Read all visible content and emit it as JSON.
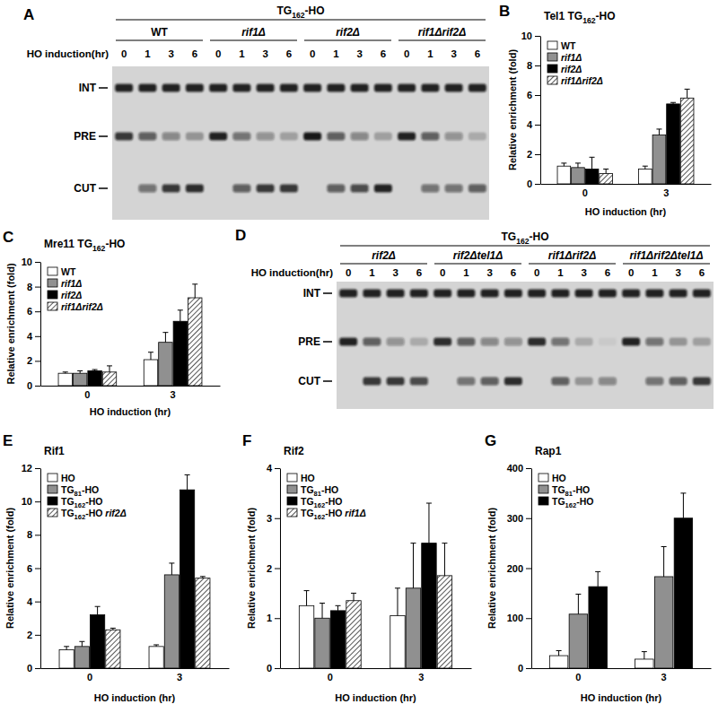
{
  "chart_data": [
    {
      "type": "blot",
      "label": "A",
      "title": "TG162-HO",
      "row_label": "HO induction(hr)",
      "groups": [
        {
          "name": "WT",
          "lanes": [
            0,
            1,
            3,
            6
          ]
        },
        {
          "name": "rif1Δ",
          "lanes": [
            0,
            1,
            3,
            6
          ]
        },
        {
          "name": "rif2Δ",
          "lanes": [
            0,
            1,
            3,
            6
          ]
        },
        {
          "name": "rif1Δrif2Δ",
          "lanes": [
            0,
            1,
            3,
            6
          ]
        }
      ],
      "bands": [
        {
          "name": "INT",
          "values": [
            0.9,
            0.9,
            0.9,
            0.9,
            0.9,
            0.9,
            0.9,
            0.9,
            0.9,
            0.9,
            0.9,
            0.9,
            0.9,
            0.9,
            0.9,
            0.9
          ]
        },
        {
          "name": "PRE",
          "values": [
            0.8,
            0.6,
            0.4,
            0.3,
            0.9,
            0.5,
            0.35,
            0.25,
            0.95,
            0.6,
            0.4,
            0.25,
            0.9,
            0.6,
            0.35,
            0.2
          ]
        },
        {
          "name": "CUT",
          "values": [
            0,
            0.5,
            0.8,
            0.85,
            0,
            0.6,
            0.8,
            0.8,
            0,
            0.6,
            0.7,
            0.9,
            0,
            0.5,
            0.5,
            0.6
          ]
        }
      ]
    },
    {
      "type": "bar",
      "label": "B",
      "title": "Tel1 TG162-HO",
      "x_label": "HO induction (hr)",
      "y_label": "Relative enrichment (fold)",
      "categories": [
        "0",
        "3"
      ],
      "series": [
        {
          "name": "WT",
          "color": "#ffffff",
          "values": [
            1.2,
            1.0
          ],
          "errors": [
            0.2,
            0.2
          ]
        },
        {
          "name": "rif1Δ",
          "color": "#909090",
          "values": [
            1.1,
            3.3
          ],
          "errors": [
            0.3,
            0.4
          ]
        },
        {
          "name": "rif2Δ",
          "color": "#000000",
          "values": [
            1.0,
            5.4
          ],
          "errors": [
            0.8,
            0.1
          ]
        },
        {
          "name": "rif1Δrif2Δ",
          "color": "#555555",
          "line_style": "hatched",
          "values": [
            0.7,
            5.8
          ],
          "errors": [
            0.3,
            0.6
          ]
        }
      ],
      "ylim": [
        0,
        10
      ],
      "yticks": [
        0,
        2,
        4,
        6,
        8,
        10
      ],
      "legend": "upper left"
    },
    {
      "type": "bar",
      "label": "C",
      "title": "Mre11 TG162-HO",
      "x_label": "HO induction (hr)",
      "y_label": "Relative enrichment (fold)",
      "categories": [
        "0",
        "3"
      ],
      "series": [
        {
          "name": "WT",
          "color": "#ffffff",
          "values": [
            1.0,
            2.1
          ],
          "errors": [
            0.1,
            0.6
          ]
        },
        {
          "name": "rif1Δ",
          "color": "#909090",
          "values": [
            1.0,
            3.5
          ],
          "errors": [
            0.2,
            0.8
          ]
        },
        {
          "name": "rif2Δ",
          "color": "#000000",
          "values": [
            1.2,
            5.2
          ],
          "errors": [
            0.1,
            0.9
          ]
        },
        {
          "name": "rif1Δrif2Δ",
          "color": "#555555",
          "line_style": "hatched",
          "values": [
            1.1,
            7.1
          ],
          "errors": [
            0.5,
            1.1
          ]
        }
      ],
      "ylim": [
        0,
        10
      ],
      "yticks": [
        0,
        2,
        4,
        6,
        8,
        10
      ],
      "legend": "upper left"
    },
    {
      "type": "blot",
      "label": "D",
      "title": "TG162-HO",
      "row_label": "HO induction(hr)",
      "groups": [
        {
          "name": "rif2Δ",
          "lanes": [
            0,
            1,
            3,
            6
          ]
        },
        {
          "name": "rif2Δtel1Δ",
          "lanes": [
            0,
            1,
            3,
            6
          ]
        },
        {
          "name": "rif1Δrif2Δ",
          "lanes": [
            0,
            1,
            3,
            6
          ]
        },
        {
          "name": "rif1Δrif2Δtel1Δ",
          "lanes": [
            0,
            1,
            3,
            6
          ]
        }
      ],
      "bands": [
        {
          "name": "INT",
          "values": [
            0.9,
            0.9,
            0.9,
            0.9,
            0.9,
            0.9,
            0.9,
            0.9,
            0.9,
            0.9,
            0.9,
            0.9,
            0.9,
            0.9,
            0.9,
            0.9
          ]
        },
        {
          "name": "PRE",
          "values": [
            0.9,
            0.6,
            0.35,
            0.2,
            0.85,
            0.6,
            0.4,
            0.35,
            0.85,
            0.5,
            0.2,
            0.05,
            0.9,
            0.5,
            0.3,
            0.25
          ]
        },
        {
          "name": "CUT",
          "values": [
            0,
            0.8,
            0.8,
            0.7,
            0,
            0.5,
            0.6,
            0.85,
            0,
            0.6,
            0.3,
            0.4,
            0,
            0.5,
            0.6,
            0.8
          ]
        }
      ]
    },
    {
      "type": "bar",
      "label": "E",
      "title": "Rif1",
      "x_label": "HO induction (hr)",
      "y_label": "Relative enrichment (fold)",
      "categories": [
        "0",
        "3"
      ],
      "series": [
        {
          "name": "HO",
          "color": "#ffffff",
          "values": [
            1.1,
            1.3
          ],
          "errors": [
            0.2,
            0.1
          ]
        },
        {
          "name": "TG81-HO",
          "color": "#909090",
          "values": [
            1.3,
            5.6
          ],
          "errors": [
            0.3,
            0.7
          ]
        },
        {
          "name": "TG162-HO",
          "color": "#000000",
          "values": [
            3.2,
            10.7
          ],
          "errors": [
            0.5,
            0.9
          ]
        },
        {
          "name": "TG162-HO rif2Δ",
          "color": "#555555",
          "line_style": "hatched",
          "values": [
            2.3,
            5.4
          ],
          "errors": [
            0.1,
            0.1
          ]
        }
      ],
      "ylim": [
        0,
        12
      ],
      "yticks": [
        0,
        2,
        4,
        6,
        8,
        10,
        12
      ],
      "legend": "upper left"
    },
    {
      "type": "bar",
      "label": "F",
      "title": "Rif2",
      "x_label": "HO induction (hr)",
      "y_label": "Relative enrichment (fold)",
      "categories": [
        "0",
        "3"
      ],
      "series": [
        {
          "name": "HO",
          "color": "#ffffff",
          "values": [
            1.25,
            1.05
          ],
          "errors": [
            0.3,
            0.55
          ]
        },
        {
          "name": "TG81-HO",
          "color": "#909090",
          "values": [
            1.0,
            1.6
          ],
          "errors": [
            0.3,
            0.9
          ]
        },
        {
          "name": "TG162-HO",
          "color": "#000000",
          "values": [
            1.15,
            2.5
          ],
          "errors": [
            0.1,
            0.8
          ]
        },
        {
          "name": "TG162-HO rif1Δ",
          "color": "#555555",
          "line_style": "hatched",
          "values": [
            1.35,
            1.85
          ],
          "errors": [
            0.15,
            0.65
          ]
        }
      ],
      "ylim": [
        0,
        4
      ],
      "yticks": [
        0,
        1,
        2,
        3,
        4
      ],
      "legend": "upper left"
    },
    {
      "type": "bar",
      "label": "G",
      "title": "Rap1",
      "x_label": "HO induction (hr)",
      "y_label": "Relative enrichment (fold)",
      "categories": [
        "0",
        "3"
      ],
      "series": [
        {
          "name": "HO",
          "color": "#ffffff",
          "values": [
            25,
            18
          ],
          "errors": [
            10,
            15
          ]
        },
        {
          "name": "TG81-HO",
          "color": "#909090",
          "values": [
            108,
            183
          ],
          "errors": [
            40,
            60
          ]
        },
        {
          "name": "TG162-HO",
          "color": "#000000",
          "values": [
            163,
            300
          ],
          "errors": [
            30,
            50
          ]
        }
      ],
      "ylim": [
        0,
        400
      ],
      "yticks": [
        0,
        100,
        200,
        300,
        400
      ],
      "legend": "upper left"
    }
  ]
}
